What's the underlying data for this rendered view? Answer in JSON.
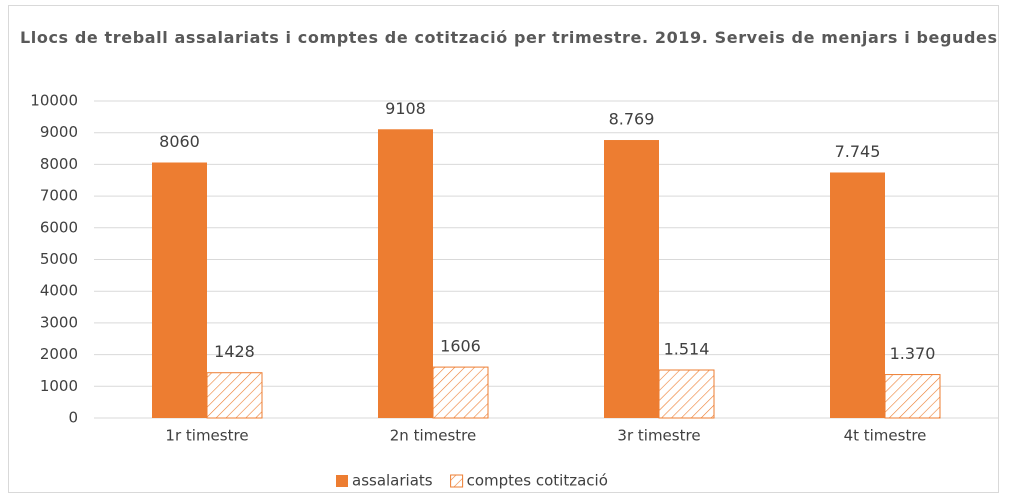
{
  "chart_data": {
    "type": "bar",
    "title": "Llocs de treball assalariats i comptes de cotització per trimestre. 2019. Serveis de menjars i begudes",
    "categories": [
      "1r timestre",
      "2n timestre",
      "3r timestre",
      "4t timestre"
    ],
    "series": [
      {
        "name": "assalariats",
        "color": "#ed7d31",
        "fill": "solid",
        "values": [
          8060,
          9108,
          8769,
          7745
        ],
        "value_labels": [
          "8060",
          "9108",
          "8.769",
          "7.745"
        ]
      },
      {
        "name": "comptes cotització",
        "color": "#ed7d31",
        "fill": "hatch",
        "values": [
          1428,
          1606,
          1514,
          1370
        ],
        "value_labels": [
          "1428",
          "1606",
          "1.514",
          "1.370"
        ]
      }
    ],
    "ylim": [
      0,
      10000
    ],
    "yticks": [
      0,
      1000,
      2000,
      3000,
      4000,
      5000,
      6000,
      7000,
      8000,
      9000,
      10000
    ],
    "grid": true,
    "legend": "bottom"
  }
}
